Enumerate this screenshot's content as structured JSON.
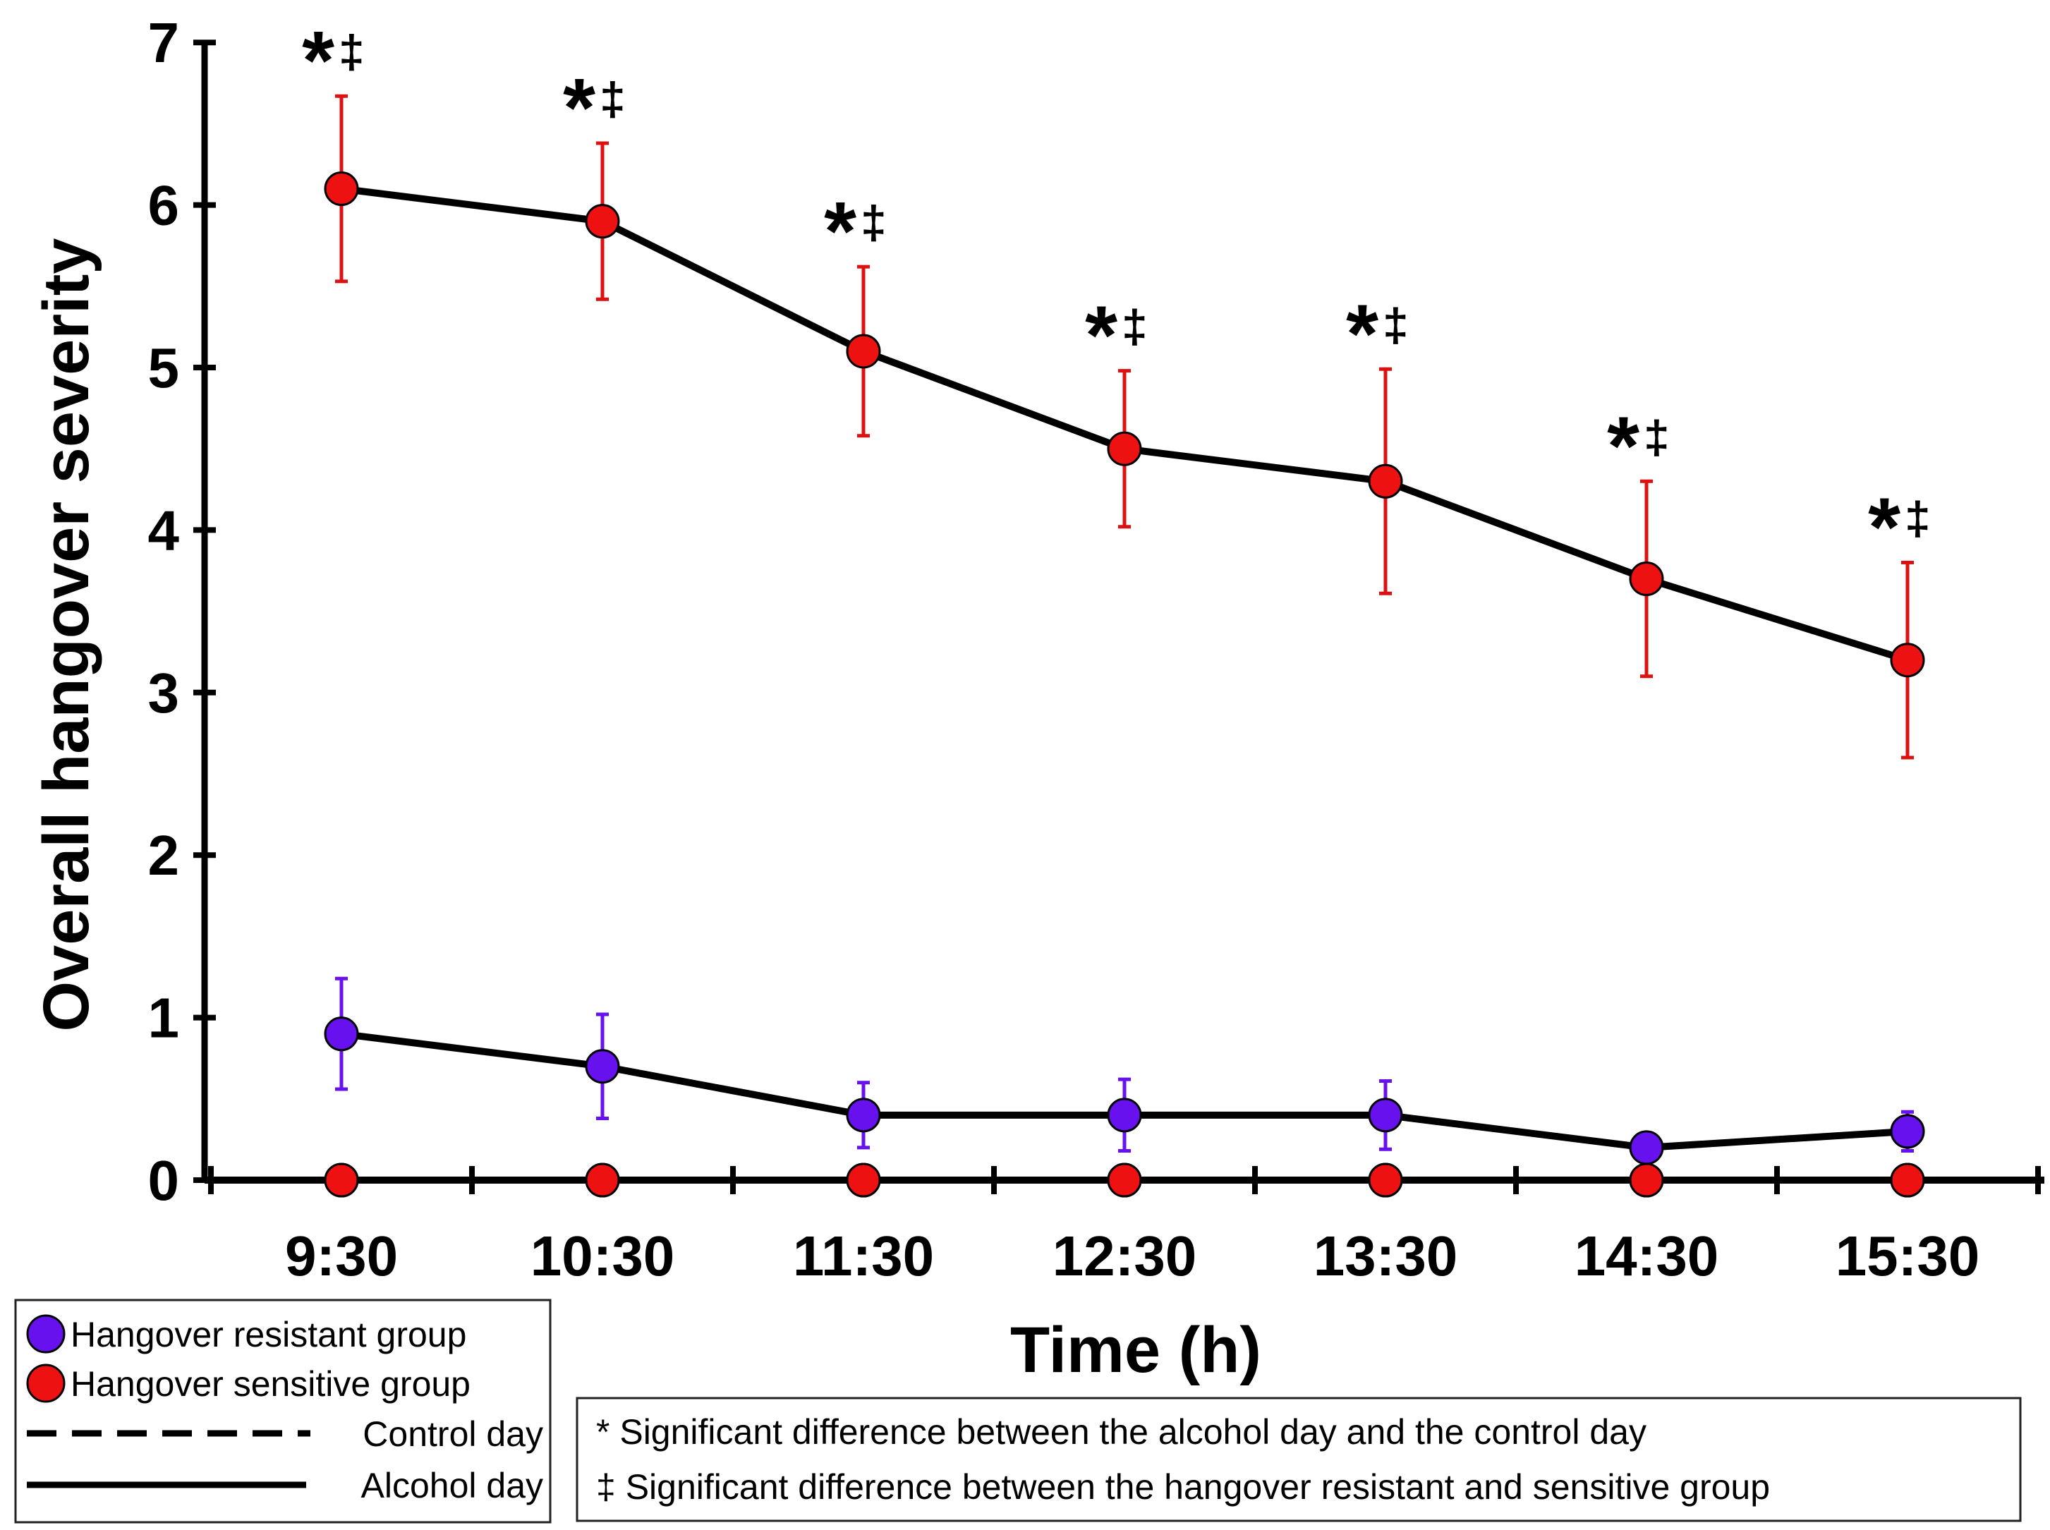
{
  "chart_data": {
    "type": "line",
    "title": "",
    "xlabel": "Time (h)",
    "ylabel": "Overall hangover severity",
    "categories": [
      "9:30",
      "10:30",
      "11:30",
      "12:30",
      "13:30",
      "14:30",
      "15:30"
    ],
    "ylim": [
      0,
      7
    ],
    "yticks": [
      0,
      1,
      2,
      3,
      4,
      5,
      6,
      7
    ],
    "grid": false,
    "series": [
      {
        "name": "Hangover sensitive group",
        "condition": "Alcohol day",
        "color": "#ee1111",
        "errorColor": "#dd1111",
        "values": [
          6.1,
          5.9,
          5.1,
          4.5,
          4.3,
          3.7,
          3.2
        ],
        "errors": [
          0.57,
          0.48,
          0.52,
          0.48,
          0.69,
          0.6,
          0.6
        ]
      },
      {
        "name": "Hangover resistant group",
        "condition": "Alcohol day",
        "color": "#6611ee",
        "errorColor": "#6611ee",
        "values": [
          0.9,
          0.7,
          0.4,
          0.4,
          0.4,
          0.2,
          0.3
        ],
        "errors": [
          0.34,
          0.32,
          0.2,
          0.22,
          0.21,
          0.0,
          0.12
        ]
      },
      {
        "name": "Hangover resistant group",
        "condition": "Control day",
        "color": "#6611ee",
        "errorColor": "#6611ee",
        "values": [
          0,
          0,
          0,
          0,
          0,
          0,
          0
        ],
        "errors": [
          0,
          0,
          0,
          0,
          0,
          0,
          0
        ]
      },
      {
        "name": "Hangover sensitive group",
        "condition": "Control day",
        "color": "#ee1111",
        "errorColor": "#dd1111",
        "values": [
          0,
          0,
          0,
          0,
          0,
          0,
          0
        ],
        "errors": [
          0,
          0,
          0,
          0,
          0,
          0,
          0
        ]
      }
    ],
    "significance": {
      "star_symbol": "*",
      "dagger_symbol": "‡",
      "flags": [
        true,
        true,
        true,
        true,
        true,
        true,
        true
      ]
    },
    "legend": {
      "placement": "bottom-left",
      "items": [
        {
          "type": "marker",
          "color": "#6611ee",
          "label": "Hangover resistant group"
        },
        {
          "type": "marker",
          "color": "#ee1111",
          "label": "Hangover sensitive group"
        },
        {
          "type": "dashed",
          "label": "Control day"
        },
        {
          "type": "solid",
          "label": "Alcohol day"
        }
      ]
    },
    "notes": {
      "placement": "bottom-right",
      "items": [
        "* Significant difference between the alcohol day and the control day",
        "‡ Significant difference between the hangover resistant and sensitive group"
      ]
    }
  }
}
